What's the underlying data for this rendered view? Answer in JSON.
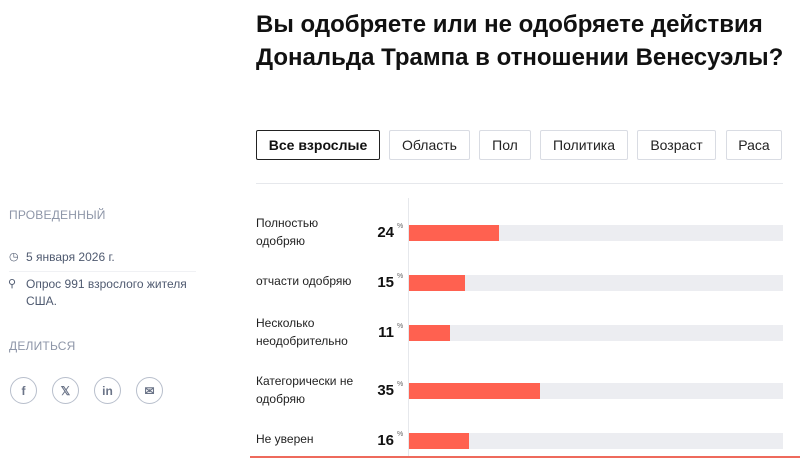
{
  "title": "Вы одобряете или не одобряете действия Дональда Трампа в отношении Венесуэлы?",
  "tabs": [
    "Все взрослые",
    "Область",
    "Пол",
    "Политика",
    "Возраст",
    "Раса"
  ],
  "sidebar": {
    "conducted_heading": "ПРОВЕДЕННЫЙ",
    "date": "5 января 2026 г.",
    "sample": "Опрос 991 взрослого жителя США.",
    "share_heading": "ДЕЛИТЬСЯ",
    "share": [
      "f",
      "𝕏",
      "in",
      "✉"
    ]
  },
  "colors": {
    "bar": "#ff6150",
    "track": "#ecedf1"
  },
  "chart_data": {
    "type": "bar",
    "orientation": "horizontal",
    "categories": [
      "Полностью одобряю",
      "отчасти одобряю",
      "Несколько неодобрительно",
      "Категорически не одобряю",
      "Не уверен"
    ],
    "values": [
      24,
      15,
      11,
      35,
      16
    ],
    "unit": "%",
    "xlim": [
      0,
      100
    ]
  }
}
